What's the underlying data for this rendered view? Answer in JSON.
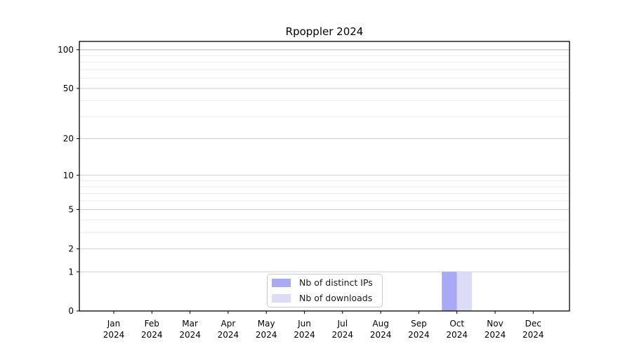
{
  "chart_data": {
    "type": "bar",
    "title": "Rpoppler 2024",
    "categories": [
      {
        "month": "Jan",
        "year": "2024"
      },
      {
        "month": "Feb",
        "year": "2024"
      },
      {
        "month": "Mar",
        "year": "2024"
      },
      {
        "month": "Apr",
        "year": "2024"
      },
      {
        "month": "May",
        "year": "2024"
      },
      {
        "month": "Jun",
        "year": "2024"
      },
      {
        "month": "Jul",
        "year": "2024"
      },
      {
        "month": "Aug",
        "year": "2024"
      },
      {
        "month": "Sep",
        "year": "2024"
      },
      {
        "month": "Oct",
        "year": "2024"
      },
      {
        "month": "Nov",
        "year": "2024"
      },
      {
        "month": "Dec",
        "year": "2024"
      }
    ],
    "series": [
      {
        "name": "Nb of distinct IPs",
        "color": "#a9a9f6",
        "values": [
          0,
          0,
          0,
          0,
          0,
          0,
          0,
          0,
          0,
          1,
          0,
          0
        ]
      },
      {
        "name": "Nb of downloads",
        "color": "#dcdcf8",
        "values": [
          0,
          0,
          0,
          0,
          0,
          0,
          0,
          0,
          0,
          1,
          0,
          0
        ]
      }
    ],
    "y_axis": {
      "scale": "log1p",
      "ticks": [
        0,
        1,
        2,
        5,
        10,
        20,
        50,
        100
      ],
      "minor_ticks": [
        3,
        4,
        6,
        7,
        8,
        9,
        30,
        40,
        60,
        70,
        80,
        90
      ],
      "max": 116
    },
    "grid": {
      "major_color": "#cfcfcf",
      "top_major_color": "#b8b8b8",
      "minor_color": "#ececec"
    },
    "axis_color": "#000000",
    "legend_position": "lower-center"
  }
}
